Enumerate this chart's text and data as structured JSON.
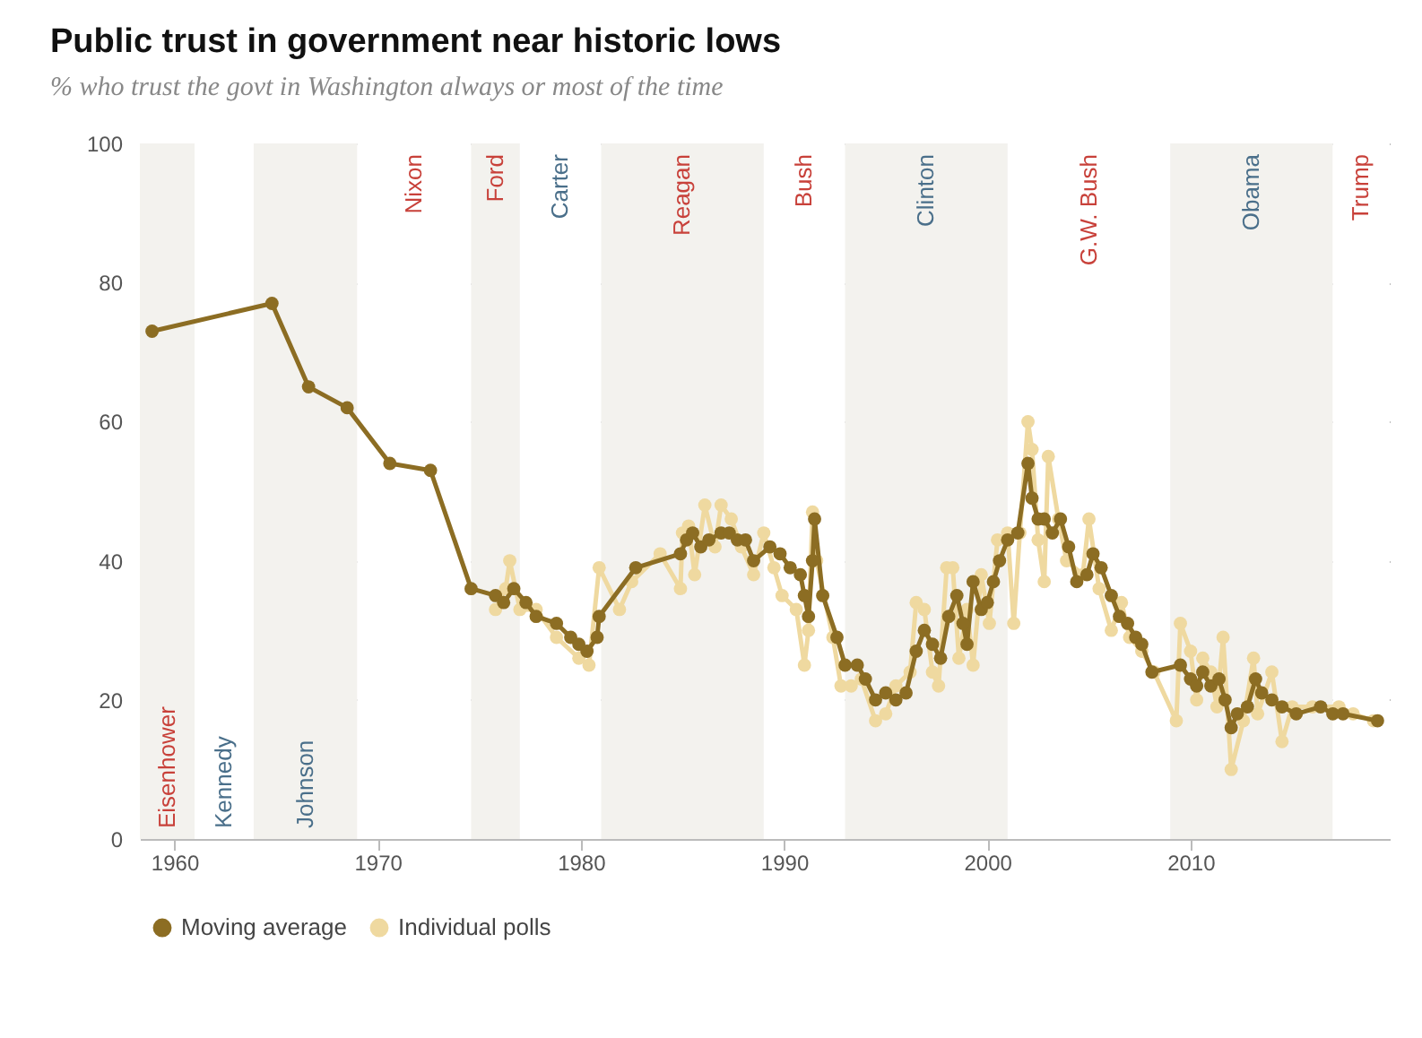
{
  "chart_data": {
    "type": "line",
    "title": "Public trust in government near historic lows",
    "subtitle": "% who trust the govt in Washington always or most of the time",
    "xlim": [
      1958.3,
      2019.8
    ],
    "xticks": [
      1960,
      1970,
      1980,
      1990,
      2000,
      2010
    ],
    "ylim": [
      0,
      100
    ],
    "yticks": [
      0,
      20,
      40,
      60,
      80,
      100
    ],
    "grid": "y",
    "legend": "bottom",
    "marker": "circle",
    "line_style": "solid",
    "bands": [
      {
        "axis": "x",
        "from": 1958.3,
        "to": 1961,
        "label": "Eisenhower",
        "color": "#f3f2ee"
      },
      {
        "axis": "x",
        "from": 1961,
        "to": 1963.9,
        "label": "Kennedy",
        "color": "#ffffff"
      },
      {
        "axis": "x",
        "from": 1963.9,
        "to": 1969,
        "label": "Johnson",
        "color": "#f3f2ee"
      },
      {
        "axis": "x",
        "from": 1969,
        "to": 1974.6,
        "label": "Nixon",
        "color": "#ffffff"
      },
      {
        "axis": "x",
        "from": 1974.6,
        "to": 1977,
        "label": "Ford",
        "color": "#f3f2ee"
      },
      {
        "axis": "x",
        "from": 1977,
        "to": 1981,
        "label": "Carter",
        "color": "#ffffff"
      },
      {
        "axis": "x",
        "from": 1981,
        "to": 1989,
        "label": "Reagan",
        "color": "#f3f2ee"
      },
      {
        "axis": "x",
        "from": 1989,
        "to": 1993,
        "label": "Bush",
        "color": "#ffffff"
      },
      {
        "axis": "x",
        "from": 1993,
        "to": 2001,
        "label": "Clinton",
        "color": "#f3f2ee"
      },
      {
        "axis": "x",
        "from": 2001,
        "to": 2009,
        "label": "G.W. Bush",
        "color": "#ffffff"
      },
      {
        "axis": "x",
        "from": 2009,
        "to": 2017,
        "label": "Obama",
        "color": "#f3f2ee"
      },
      {
        "axis": "x",
        "from": 2017,
        "to": 2019.8,
        "label": "Trump",
        "color": "#ffffff"
      }
    ],
    "series": [
      {
        "name": "Moving average",
        "color": "#8c6d23",
        "x": [
          1958.9,
          1964.8,
          1966.6,
          1968.5,
          1970.6,
          1972.6,
          1974.6,
          1975.8,
          1976.2,
          1976.7,
          1977.3,
          1977.8,
          1978.8,
          1979.5,
          1979.9,
          1980.3,
          1980.8,
          1980.9,
          1982.7,
          1984.9,
          1985.2,
          1985.5,
          1985.9,
          1986.3,
          1986.9,
          1987.3,
          1987.7,
          1988.1,
          1988.5,
          1989.3,
          1989.8,
          1990.3,
          1990.8,
          1991.0,
          1991.2,
          1991.4,
          1991.5,
          1991.9,
          1992.6,
          1993.0,
          1993.6,
          1994.0,
          1994.5,
          1995.0,
          1995.5,
          1996.0,
          1996.5,
          1996.9,
          1997.3,
          1997.7,
          1998.1,
          1998.5,
          1998.8,
          1999.0,
          1999.3,
          1999.7,
          2000.0,
          2000.3,
          2000.6,
          2001.0,
          2001.5,
          2002.0,
          2002.2,
          2002.5,
          2002.8,
          2003.2,
          2003.6,
          2004.0,
          2004.4,
          2004.9,
          2005.2,
          2005.6,
          2006.1,
          2006.5,
          2006.9,
          2007.3,
          2007.6,
          2008.1,
          2009.5,
          2010.0,
          2010.3,
          2010.6,
          2011.0,
          2011.4,
          2011.7,
          2012.0,
          2012.3,
          2012.8,
          2013.2,
          2013.5,
          2014.0,
          2014.5,
          2015.2,
          2016.4,
          2017.0,
          2017.5,
          2019.2
        ],
        "values": [
          73,
          77,
          65,
          62,
          54,
          53,
          36,
          35,
          34,
          36,
          34,
          32,
          31,
          29,
          28,
          27,
          29,
          32,
          39,
          41,
          43,
          44,
          42,
          43,
          44,
          44,
          43,
          43,
          40,
          42,
          41,
          39,
          38,
          35,
          32,
          40,
          46,
          35,
          29,
          25,
          25,
          23,
          20,
          21,
          20,
          21,
          27,
          30,
          28,
          26,
          32,
          35,
          31,
          28,
          37,
          33,
          34,
          37,
          40,
          43,
          44,
          54,
          49,
          46,
          46,
          44,
          46,
          42,
          37,
          38,
          41,
          39,
          35,
          32,
          31,
          29,
          28,
          24,
          25,
          23,
          22,
          24,
          22,
          23,
          20,
          16,
          18,
          19,
          23,
          21,
          20,
          19,
          18,
          19,
          18,
          18,
          17
        ]
      },
      {
        "name": "Individual polls",
        "color": "#efd9a0",
        "x": [
          1975.8,
          1976.3,
          1976.5,
          1977.0,
          1977.8,
          1978.8,
          1979.9,
          1980.4,
          1980.9,
          1981.9,
          1982.5,
          1983.9,
          1984.9,
          1985.0,
          1985.3,
          1985.6,
          1986.1,
          1986.6,
          1986.9,
          1987.4,
          1987.9,
          1988.5,
          1989.0,
          1989.5,
          1989.9,
          1990.6,
          1991.0,
          1991.2,
          1991.4,
          1991.6,
          1992.4,
          1992.8,
          1993.3,
          1993.8,
          1994.5,
          1995.0,
          1995.5,
          1996.2,
          1996.5,
          1996.9,
          1997.3,
          1997.6,
          1998.0,
          1998.3,
          1998.6,
          1999.0,
          1999.3,
          1999.7,
          2000.1,
          2000.5,
          2001.0,
          2001.3,
          2001.6,
          2002.0,
          2002.2,
          2002.5,
          2002.8,
          2003.0,
          2003.5,
          2003.9,
          2004.7,
          2005.0,
          2005.5,
          2006.1,
          2006.6,
          2007.0,
          2007.6,
          2008.2,
          2009.3,
          2009.5,
          2010.0,
          2010.3,
          2010.6,
          2011.0,
          2011.3,
          2011.6,
          2012.0,
          2012.6,
          2013.1,
          2013.3,
          2014.0,
          2014.5,
          2015.0,
          2016.0,
          2017.3,
          2018.0,
          2019.0
        ],
        "values": [
          33,
          36,
          40,
          33,
          33,
          29,
          26,
          25,
          39,
          33,
          37,
          41,
          36,
          44,
          45,
          38,
          48,
          42,
          48,
          46,
          42,
          38,
          44,
          39,
          35,
          33,
          25,
          30,
          47,
          40,
          29,
          22,
          22,
          23,
          17,
          18,
          22,
          24,
          34,
          33,
          24,
          22,
          39,
          39,
          26,
          33,
          25,
          38,
          31,
          43,
          44,
          31,
          44,
          60,
          56,
          43,
          37,
          55,
          46,
          40,
          38,
          46,
          36,
          30,
          34,
          29,
          27,
          24,
          17,
          31,
          27,
          20,
          26,
          24,
          19,
          29,
          10,
          17,
          26,
          18,
          24,
          14,
          19,
          19,
          19,
          18,
          17
        ]
      }
    ]
  }
}
